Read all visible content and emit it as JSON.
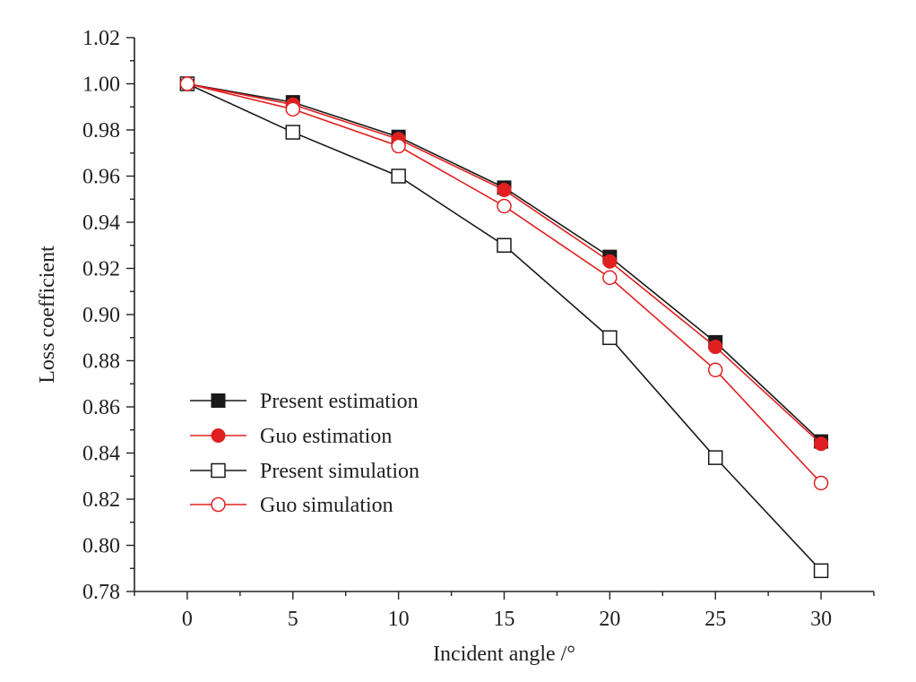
{
  "chart_data": {
    "type": "line",
    "title": "",
    "xlabel": "Incident angle /°",
    "ylabel": "Loss coefficient",
    "xlim": [
      -2.5,
      32.5
    ],
    "ylim": [
      0.78,
      1.02
    ],
    "x_ticks": [
      0,
      5,
      10,
      15,
      20,
      25,
      30
    ],
    "x_tick_labels": [
      "0",
      "5",
      "10",
      "15",
      "20",
      "25",
      "30"
    ],
    "y_ticks": [
      0.78,
      0.8,
      0.82,
      0.84,
      0.86,
      0.88,
      0.9,
      0.92,
      0.94,
      0.96,
      0.98,
      1.0,
      1.02
    ],
    "y_tick_labels": [
      "0.78",
      "0.80",
      "0.82",
      "0.84",
      "0.86",
      "0.88",
      "0.90",
      "0.92",
      "0.94",
      "0.96",
      "0.98",
      "1.00",
      "1.02"
    ],
    "grid": false,
    "legend_position": "lower-left",
    "x": [
      0,
      5,
      10,
      15,
      20,
      25,
      30
    ],
    "series": [
      {
        "name": "Present estimation",
        "color": "#1a1a1a",
        "marker": "square-filled",
        "values": [
          1.0,
          0.992,
          0.977,
          0.955,
          0.925,
          0.888,
          0.845
        ]
      },
      {
        "name": "Guo estimation",
        "color": "#e02020",
        "marker": "circle-filled",
        "values": [
          1.0,
          0.991,
          0.976,
          0.954,
          0.923,
          0.886,
          0.844
        ]
      },
      {
        "name": "Present simulation",
        "color": "#1a1a1a",
        "marker": "square-open",
        "values": [
          1.0,
          0.979,
          0.96,
          0.93,
          0.89,
          0.838,
          0.789
        ]
      },
      {
        "name": "Guo simulation",
        "color": "#e02020",
        "marker": "circle-open",
        "values": [
          1.0,
          0.989,
          0.973,
          0.947,
          0.916,
          0.876,
          0.827
        ]
      }
    ]
  }
}
